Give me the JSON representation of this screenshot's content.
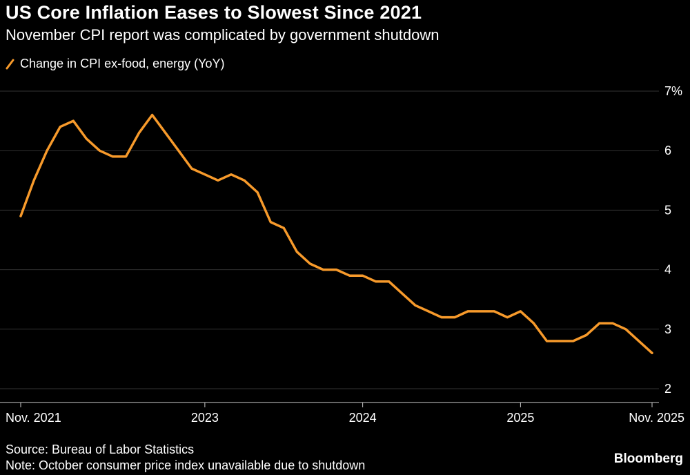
{
  "header": {
    "title": "US Core Inflation Eases to Slowest Since 2021",
    "subtitle": "November CPI report was complicated by government shutdown"
  },
  "legend": {
    "label": "Change in CPI ex-food, energy (YoY)",
    "color": "#F79A2B"
  },
  "chart_data": {
    "type": "line",
    "title": "US Core Inflation Eases to Slowest Since 2021",
    "subtitle": "November CPI report was complicated by government shutdown",
    "series_name": "Change in CPI ex-food, energy (YoY)",
    "unit": "%",
    "line_color": "#F79A2B",
    "grid": true,
    "legend_position": "top-left",
    "x": [
      "Nov 2021",
      "Dec 2021",
      "Jan 2022",
      "Feb 2022",
      "Mar 2022",
      "Apr 2022",
      "May 2022",
      "Jun 2022",
      "Jul 2022",
      "Aug 2022",
      "Sep 2022",
      "Oct 2022",
      "Nov 2022",
      "Dec 2022",
      "Jan 2023",
      "Feb 2023",
      "Mar 2023",
      "Apr 2023",
      "May 2023",
      "Jun 2023",
      "Jul 2023",
      "Aug 2023",
      "Sep 2023",
      "Oct 2023",
      "Nov 2023",
      "Dec 2023",
      "Jan 2024",
      "Feb 2024",
      "Mar 2024",
      "Apr 2024",
      "May 2024",
      "Jun 2024",
      "Jul 2024",
      "Aug 2024",
      "Sep 2024",
      "Oct 2024",
      "Nov 2024",
      "Dec 2024",
      "Jan 2025",
      "Feb 2025",
      "Mar 2025",
      "Apr 2025",
      "May 2025",
      "Jun 2025",
      "Jul 2025",
      "Aug 2025",
      "Sep 2025",
      "Oct 2025",
      "Nov 2025"
    ],
    "values": [
      4.9,
      5.5,
      6.0,
      6.4,
      6.5,
      6.2,
      6.0,
      5.9,
      5.9,
      6.3,
      6.6,
      6.3,
      6.0,
      5.7,
      5.6,
      5.5,
      5.6,
      5.5,
      5.3,
      4.8,
      4.7,
      4.3,
      4.1,
      4.0,
      4.0,
      3.9,
      3.9,
      3.8,
      3.8,
      3.6,
      3.4,
      3.3,
      3.2,
      3.2,
      3.3,
      3.3,
      3.3,
      3.2,
      3.3,
      3.1,
      2.8,
      2.8,
      2.8,
      2.9,
      3.1,
      3.1,
      3.0,
      null,
      2.6
    ],
    "ylim": [
      2,
      7
    ],
    "yticks": [
      2,
      3,
      4,
      5,
      6,
      7
    ],
    "ytick_labels": [
      "2",
      "3",
      "4",
      "5",
      "6",
      "7%"
    ],
    "x_ticks": [
      {
        "index": 0,
        "label": "Nov. 2021",
        "align": "start"
      },
      {
        "index": 14,
        "label": "2023",
        "align": "middle"
      },
      {
        "index": 26,
        "label": "2024",
        "align": "middle"
      },
      {
        "index": 38,
        "label": "2025",
        "align": "middle"
      },
      {
        "index": 48,
        "label": "Nov. 2025",
        "align": "end"
      }
    ]
  },
  "footer": {
    "source": "Source: Bureau of Labor Statistics",
    "note": "Note: October consumer price index unavailable due to shutdown",
    "brand": "Bloomberg"
  }
}
